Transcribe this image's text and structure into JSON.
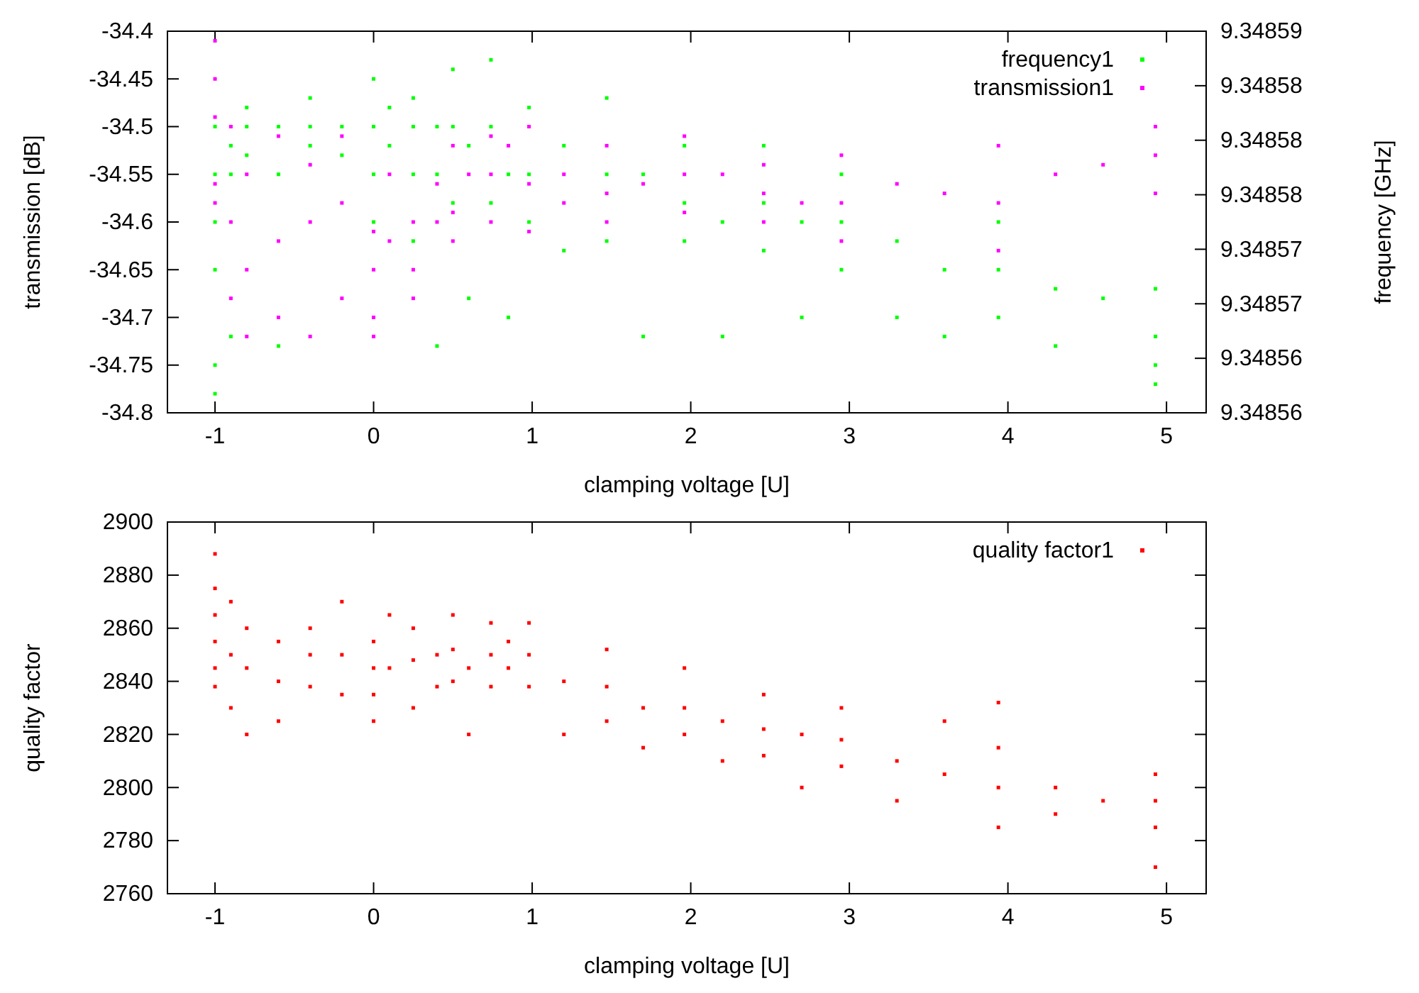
{
  "chart_data": [
    {
      "type": "scatter",
      "xlabel": "clamping voltage [U]",
      "ylabel": "transmission [dB]",
      "y2label": "frequency [GHz]",
      "xlim": [
        -1.3,
        5.25
      ],
      "xticks": [
        -1,
        0,
        1,
        2,
        3,
        4,
        5
      ],
      "ylim": [
        -34.8,
        -34.4
      ],
      "yticks": [
        -34.8,
        -34.75,
        -34.7,
        -34.65,
        -34.6,
        -34.55,
        -34.5,
        -34.45,
        -34.4
      ],
      "y2lim": [
        9.34856,
        9.348588
      ],
      "y2ticks": [
        {
          "value": 9.34856,
          "label": "9.34856"
        },
        {
          "value": 9.348564,
          "label": "9.34856"
        },
        {
          "value": 9.348568,
          "label": "9.34857"
        },
        {
          "value": 9.348572,
          "label": "9.34857"
        },
        {
          "value": 9.348576,
          "label": "9.34858"
        },
        {
          "value": 9.34858,
          "label": "9.34858"
        },
        {
          "value": 9.348584,
          "label": "9.34858"
        },
        {
          "value": 9.348588,
          "label": "9.34859"
        }
      ],
      "legend": "top right",
      "marker": "square",
      "series": [
        {
          "name": "frequency1",
          "color": "#00ff00",
          "axis": "y2",
          "x": [
            -1,
            -1,
            -1,
            -1,
            -1,
            -1,
            -0.9,
            -0.9,
            -0.9,
            -0.8,
            -0.8,
            -0.8,
            -0.6,
            -0.6,
            -0.6,
            -0.4,
            -0.4,
            -0.4,
            -0.2,
            -0.2,
            0,
            0,
            0,
            0,
            0.1,
            0.1,
            0.25,
            0.25,
            0.25,
            0.25,
            0.4,
            0.4,
            0.4,
            0.5,
            0.5,
            0.5,
            0.6,
            0.6,
            0.74,
            0.74,
            0.74,
            0.85,
            0.85,
            0.98,
            0.98,
            0.98,
            1.2,
            1.2,
            1.47,
            1.47,
            1.47,
            1.7,
            1.7,
            1.96,
            1.96,
            1.96,
            2.2,
            2.2,
            2.46,
            2.46,
            2.46,
            2.7,
            2.7,
            2.95,
            2.95,
            2.95,
            3.3,
            3.3,
            3.6,
            3.6,
            3.94,
            3.94,
            3.94,
            4.3,
            4.3,
            4.6,
            4.93,
            4.93,
            4.93,
            4.93
          ],
          "values": [
            9.3485614,
            9.3485635,
            9.3485705,
            9.348574,
            9.3485775,
            9.348581,
            9.3485796,
            9.3485775,
            9.3485656,
            9.348581,
            9.3485824,
            9.3485789,
            9.348581,
            9.3485775,
            9.3485649,
            9.348581,
            9.3485796,
            9.3485831,
            9.348581,
            9.3485789,
            9.3485845,
            9.348581,
            9.3485775,
            9.348574,
            9.3485824,
            9.3485796,
            9.3485831,
            9.348581,
            9.3485775,
            9.3485726,
            9.348581,
            9.3485775,
            9.3485649,
            9.3485852,
            9.348581,
            9.3485754,
            9.3485796,
            9.3485684,
            9.3485859,
            9.348581,
            9.3485754,
            9.3485775,
            9.348567,
            9.3485824,
            9.3485775,
            9.348574,
            9.3485796,
            9.3485719,
            9.3485831,
            9.3485775,
            9.3485726,
            9.3485775,
            9.3485656,
            9.3485796,
            9.3485754,
            9.3485726,
            9.348574,
            9.3485656,
            9.3485796,
            9.3485754,
            9.3485719,
            9.348574,
            9.348567,
            9.3485775,
            9.348574,
            9.3485705,
            9.3485726,
            9.348567,
            9.3485705,
            9.3485656,
            9.348574,
            9.3485705,
            9.348567,
            9.3485691,
            9.3485649,
            9.3485684,
            9.3485691,
            9.3485656,
            9.3485635,
            9.3485621
          ]
        },
        {
          "name": "transmission1",
          "color": "#ff00ff",
          "x": [
            -1,
            -1,
            -1,
            -1,
            -1,
            -0.9,
            -0.9,
            -0.9,
            -0.8,
            -0.8,
            -0.8,
            -0.6,
            -0.6,
            -0.6,
            -0.4,
            -0.4,
            -0.4,
            -0.2,
            -0.2,
            -0.2,
            0,
            0,
            0,
            0,
            0.1,
            0.1,
            0.25,
            0.25,
            0.25,
            0.4,
            0.4,
            0.5,
            0.5,
            0.5,
            0.6,
            0.74,
            0.74,
            0.74,
            0.85,
            0.98,
            0.98,
            0.98,
            1.2,
            1.2,
            1.47,
            1.47,
            1.47,
            1.7,
            1.96,
            1.96,
            1.96,
            2.2,
            2.46,
            2.46,
            2.46,
            2.7,
            2.95,
            2.95,
            2.95,
            3.3,
            3.6,
            3.94,
            3.94,
            3.94,
            4.3,
            4.6,
            4.93,
            4.93,
            4.93
          ],
          "values": [
            -34.41,
            -34.45,
            -34.49,
            -34.56,
            -34.58,
            -34.6,
            -34.68,
            -34.5,
            -34.65,
            -34.72,
            -34.55,
            -34.62,
            -34.7,
            -34.51,
            -34.6,
            -34.72,
            -34.54,
            -34.58,
            -34.68,
            -34.51,
            -34.61,
            -34.65,
            -34.7,
            -34.72,
            -34.55,
            -34.62,
            -34.6,
            -34.65,
            -34.68,
            -34.56,
            -34.6,
            -34.52,
            -34.59,
            -34.62,
            -34.55,
            -34.51,
            -34.55,
            -34.6,
            -34.52,
            -34.5,
            -34.56,
            -34.61,
            -34.55,
            -34.58,
            -34.52,
            -34.57,
            -34.6,
            -34.56,
            -34.51,
            -34.55,
            -34.59,
            -34.55,
            -34.54,
            -34.57,
            -34.6,
            -34.58,
            -34.53,
            -34.58,
            -34.62,
            -34.56,
            -34.57,
            -34.52,
            -34.58,
            -34.63,
            -34.55,
            -34.54,
            -34.5,
            -34.53,
            -34.57
          ]
        }
      ]
    },
    {
      "type": "scatter",
      "xlabel": "clamping voltage [U]",
      "ylabel": "quality factor",
      "xlim": [
        -1.3,
        5.25
      ],
      "xticks": [
        -1,
        0,
        1,
        2,
        3,
        4,
        5
      ],
      "ylim": [
        2760,
        2900
      ],
      "yticks": [
        2760,
        2780,
        2800,
        2820,
        2840,
        2860,
        2880,
        2900
      ],
      "legend": "top right",
      "marker": "square",
      "series": [
        {
          "name": "quality factor1",
          "color": "#ff0000",
          "x": [
            -1,
            -1,
            -1,
            -1,
            -1,
            -1,
            -0.9,
            -0.9,
            -0.9,
            -0.8,
            -0.8,
            -0.8,
            -0.6,
            -0.6,
            -0.6,
            -0.4,
            -0.4,
            -0.4,
            -0.2,
            -0.2,
            -0.2,
            0,
            0,
            0,
            0,
            0.1,
            0.1,
            0.25,
            0.25,
            0.25,
            0.4,
            0.4,
            0.5,
            0.5,
            0.5,
            0.6,
            0.6,
            0.74,
            0.74,
            0.74,
            0.85,
            0.85,
            0.98,
            0.98,
            0.98,
            1.2,
            1.2,
            1.47,
            1.47,
            1.47,
            1.7,
            1.7,
            1.96,
            1.96,
            1.96,
            2.2,
            2.2,
            2.46,
            2.46,
            2.46,
            2.7,
            2.7,
            2.95,
            2.95,
            2.95,
            3.3,
            3.3,
            3.6,
            3.6,
            3.94,
            3.94,
            3.94,
            3.94,
            4.3,
            4.3,
            4.6,
            4.93,
            4.93,
            4.93,
            4.93
          ],
          "values": [
            2888,
            2875,
            2865,
            2855,
            2845,
            2838,
            2870,
            2850,
            2830,
            2860,
            2845,
            2820,
            2855,
            2840,
            2825,
            2850,
            2838,
            2860,
            2850,
            2835,
            2870,
            2855,
            2845,
            2835,
            2825,
            2845,
            2865,
            2860,
            2848,
            2830,
            2850,
            2838,
            2865,
            2852,
            2840,
            2845,
            2820,
            2862,
            2850,
            2838,
            2845,
            2855,
            2862,
            2850,
            2838,
            2840,
            2820,
            2852,
            2838,
            2825,
            2830,
            2815,
            2845,
            2830,
            2820,
            2825,
            2810,
            2835,
            2822,
            2812,
            2820,
            2800,
            2830,
            2818,
            2808,
            2810,
            2795,
            2805,
            2825,
            2832,
            2815,
            2800,
            2785,
            2800,
            2790,
            2795,
            2805,
            2795,
            2785,
            2770
          ]
        }
      ]
    }
  ]
}
